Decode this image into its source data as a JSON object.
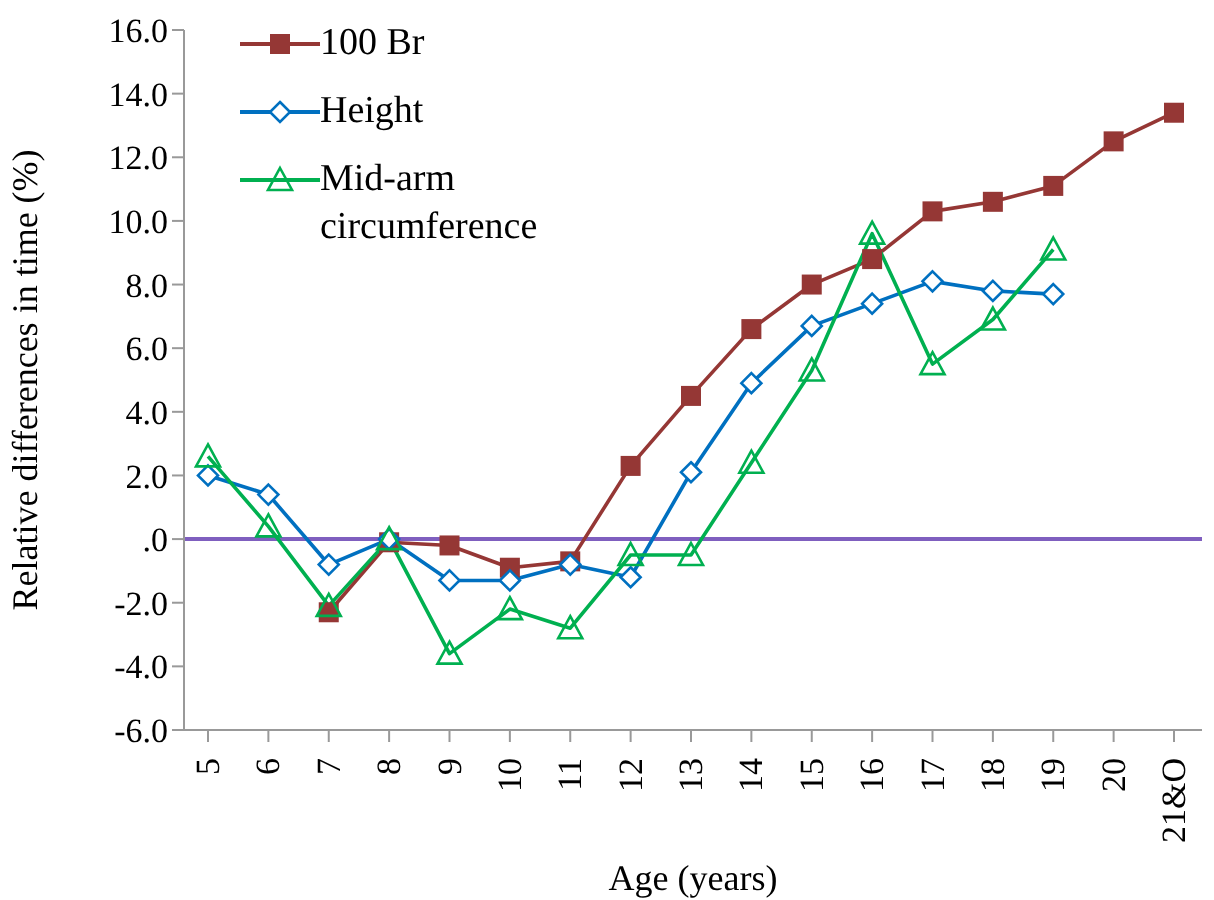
{
  "chart_data": {
    "type": "line",
    "xlabel": "Age (years)",
    "ylabel": "Relative differences in time (%)",
    "categories": [
      "5",
      "6",
      "7",
      "8",
      "9",
      "10",
      "11",
      "12",
      "13",
      "14",
      "15",
      "16",
      "17",
      "18",
      "19",
      "20",
      "21&O"
    ],
    "series": [
      {
        "name": "100 Br",
        "color": "#953735",
        "marker": "square",
        "values": [
          null,
          null,
          -2.3,
          -0.1,
          -0.2,
          -0.9,
          -0.7,
          2.3,
          4.5,
          6.6,
          8.0,
          8.8,
          10.3,
          10.6,
          11.1,
          12.5,
          13.4
        ]
      },
      {
        "name": "Height",
        "color": "#0070c0",
        "marker": "diamond",
        "values": [
          2.0,
          1.4,
          -0.8,
          0.0,
          -1.3,
          -1.3,
          -0.8,
          -1.2,
          2.1,
          4.9,
          6.7,
          7.4,
          8.1,
          7.8,
          7.7,
          null,
          null
        ]
      },
      {
        "name": "Mid-arm circumference",
        "color": "#00b050",
        "marker": "triangle",
        "values": [
          2.6,
          0.4,
          -2.1,
          0.0,
          -3.6,
          -2.2,
          -2.8,
          -0.5,
          -0.5,
          2.4,
          5.3,
          9.6,
          5.5,
          6.9,
          9.1,
          null,
          null
        ]
      }
    ],
    "ylim": [
      -6,
      16
    ],
    "yticks": [
      {
        "value": -6,
        "label": "-6.0"
      },
      {
        "value": -4,
        "label": "-4.0"
      },
      {
        "value": -2,
        "label": "-2.0"
      },
      {
        "value": 0,
        "label": ".0"
      },
      {
        "value": 2,
        "label": "2.0"
      },
      {
        "value": 4,
        "label": "4.0"
      },
      {
        "value": 6,
        "label": "6.0"
      },
      {
        "value": 8,
        "label": "8.0"
      },
      {
        "value": 10,
        "label": "10.0"
      },
      {
        "value": 12,
        "label": "12.0"
      },
      {
        "value": 14,
        "label": "14.0"
      },
      {
        "value": 16,
        "label": "16.0"
      }
    ],
    "ref_lines": [
      {
        "axis": "y",
        "value": 0,
        "color": "#7f5fbf"
      }
    ],
    "grid": false,
    "legend": "top left"
  }
}
